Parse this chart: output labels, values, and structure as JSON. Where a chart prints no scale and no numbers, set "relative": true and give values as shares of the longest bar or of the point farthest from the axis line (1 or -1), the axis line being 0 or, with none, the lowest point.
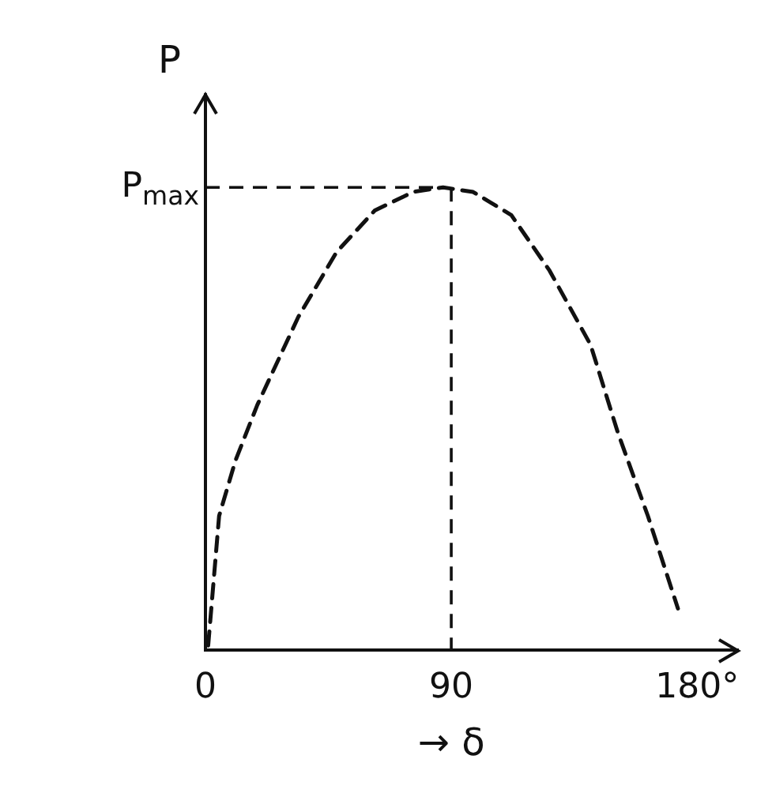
{
  "chart_data": {
    "type": "line",
    "relative": true,
    "ylabel": "P",
    "xlabel": "→ δ",
    "x": [
      1,
      5,
      11,
      19,
      34,
      48,
      62,
      76,
      87,
      98,
      112,
      126,
      141,
      151,
      162,
      173
    ],
    "series": [
      {
        "color": "#111111",
        "values": [
          0.01,
          0.29,
          0.41,
          0.53,
          0.72,
          0.86,
          0.95,
          0.99,
          1,
          0.99,
          0.94,
          0.82,
          0.66,
          0.47,
          0.29,
          0.09
        ]
      }
    ],
    "xlim": [
      0,
      195
    ],
    "xticks": [
      0,
      90,
      {
        "value": 180,
        "label": "180°"
      }
    ],
    "ref_lines": [
      {
        "axis": "y",
        "value": 1,
        "label": "P$_{max}$",
        "line_style": "dashed"
      },
      {
        "axis": "x",
        "value": 90,
        "line_style": "dashed"
      }
    ],
    "line_style": "dashed",
    "marker": "none",
    "grid": false,
    "legend": false
  }
}
